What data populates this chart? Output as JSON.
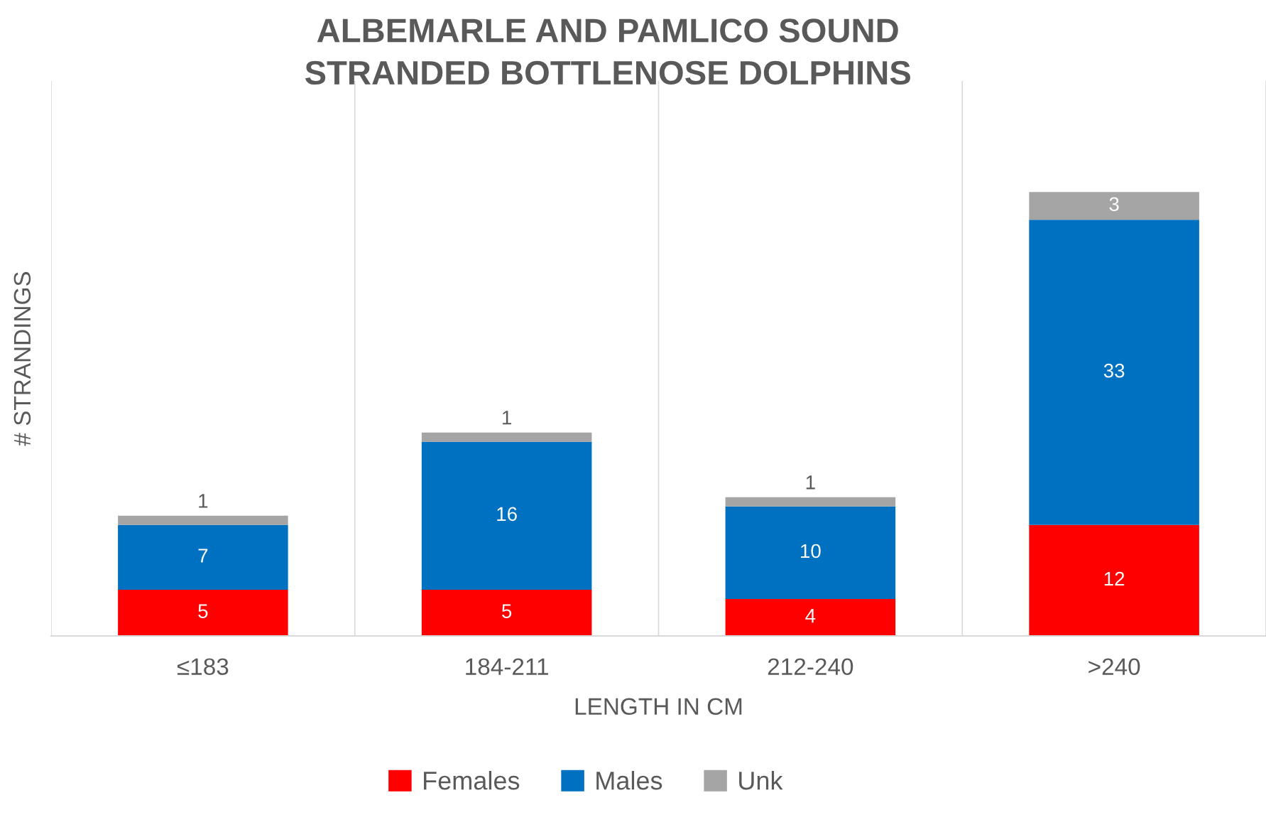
{
  "chart_data": {
    "type": "bar",
    "stacked": true,
    "title": "ALBEMARLE AND PAMLICO SOUND\nSTRANDED BOTTLENOSE DOLPHINS",
    "xlabel": "LENGTH IN CM",
    "ylabel": "# STRANDINGS",
    "categories": [
      "≤183",
      "184-211",
      "212-240",
      ">240"
    ],
    "series": [
      {
        "name": "Females",
        "color": "#ff0000",
        "values": [
          5,
          5,
          4,
          12
        ]
      },
      {
        "name": "Males",
        "color": "#0070c0",
        "values": [
          7,
          16,
          10,
          33
        ]
      },
      {
        "name": "Unk",
        "color": "#a5a5a5",
        "values": [
          1,
          1,
          1,
          3
        ]
      }
    ],
    "ylim": [
      0,
      60
    ],
    "data_labels": true,
    "grid": "x",
    "legend": "bottom",
    "tick_labels": "x"
  }
}
